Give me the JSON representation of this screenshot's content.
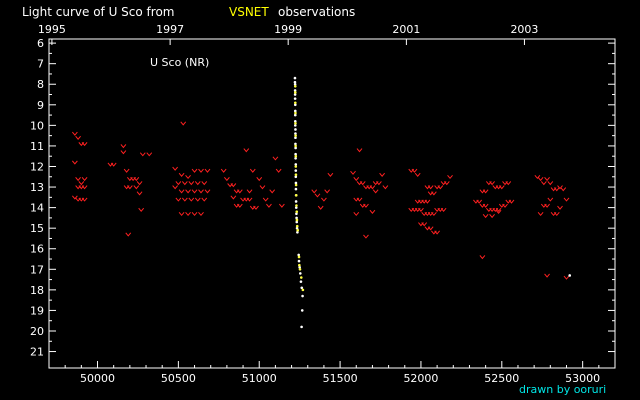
{
  "title_prefix": "Light curve of U Sco from",
  "title_source": "VSNET",
  "title_suffix": "observations",
  "credit": "drawn by ooruri",
  "colors": {
    "background": "#000000",
    "axis": "#ffffff",
    "text": "#ffffff",
    "source": "#ffff00",
    "credit": "#00e5e5",
    "red_marks": "#ff2020",
    "white_points": "#ffffff",
    "yellow_points": "#ffff40"
  },
  "chart_data": {
    "type": "scatter",
    "annotation": "U Sco (NR)",
    "x_range": [
      49700,
      53200
    ],
    "y_range": [
      21.8,
      5.8
    ],
    "y_inverted": true,
    "x_ticks": [
      50000,
      50500,
      51000,
      51500,
      52000,
      52500,
      53000
    ],
    "x_tick_labels": [
      "50000",
      "50500",
      "51000",
      "51500",
      "52000",
      "52500",
      "53000"
    ],
    "top_ticks": [
      {
        "label": "1995",
        "jd": 49718
      },
      {
        "label": "1997",
        "jd": 50449
      },
      {
        "label": "1999",
        "jd": 51179
      },
      {
        "label": "2001",
        "jd": 51910
      },
      {
        "label": "2003",
        "jd": 52640
      }
    ],
    "y_ticks": [
      6,
      7,
      8,
      9,
      10,
      11,
      12,
      13,
      14,
      15,
      16,
      17,
      18,
      19,
      20,
      21
    ],
    "series": [
      {
        "style": "fainter-than",
        "color": "red",
        "points": [
          [
            49860,
            10.4
          ],
          [
            49880,
            10.6
          ],
          [
            49900,
            10.9
          ],
          [
            49920,
            10.9
          ],
          [
            49860,
            11.8
          ],
          [
            49880,
            12.6
          ],
          [
            49900,
            12.8
          ],
          [
            49920,
            12.6
          ],
          [
            49880,
            13.0
          ],
          [
            49900,
            13.0
          ],
          [
            49920,
            13.0
          ],
          [
            49860,
            13.5
          ],
          [
            49880,
            13.6
          ],
          [
            49900,
            13.6
          ],
          [
            49920,
            13.6
          ],
          [
            50080,
            11.9
          ],
          [
            50100,
            11.9
          ],
          [
            50160,
            11.0
          ],
          [
            50160,
            11.3
          ],
          [
            50180,
            12.2
          ],
          [
            50200,
            12.6
          ],
          [
            50220,
            12.6
          ],
          [
            50240,
            12.6
          ],
          [
            50260,
            12.8
          ],
          [
            50180,
            13.0
          ],
          [
            50200,
            13.0
          ],
          [
            50240,
            13.0
          ],
          [
            50260,
            13.3
          ],
          [
            50270,
            14.1
          ],
          [
            50190,
            15.3
          ],
          [
            50280,
            11.4
          ],
          [
            50320,
            11.4
          ],
          [
            50530,
            9.9
          ],
          [
            50480,
            12.1
          ],
          [
            50520,
            12.4
          ],
          [
            50560,
            12.5
          ],
          [
            50600,
            12.2
          ],
          [
            50640,
            12.2
          ],
          [
            50680,
            12.2
          ],
          [
            50500,
            12.8
          ],
          [
            50540,
            12.8
          ],
          [
            50580,
            12.8
          ],
          [
            50620,
            12.8
          ],
          [
            50660,
            12.8
          ],
          [
            50480,
            13.0
          ],
          [
            50520,
            13.2
          ],
          [
            50560,
            13.2
          ],
          [
            50600,
            13.2
          ],
          [
            50640,
            13.2
          ],
          [
            50680,
            13.2
          ],
          [
            50500,
            13.6
          ],
          [
            50540,
            13.6
          ],
          [
            50580,
            13.6
          ],
          [
            50620,
            13.6
          ],
          [
            50660,
            13.6
          ],
          [
            50520,
            14.3
          ],
          [
            50560,
            14.3
          ],
          [
            50600,
            14.3
          ],
          [
            50640,
            14.3
          ],
          [
            50780,
            12.2
          ],
          [
            50800,
            12.6
          ],
          [
            50820,
            12.9
          ],
          [
            50840,
            12.9
          ],
          [
            50860,
            13.2
          ],
          [
            50880,
            13.2
          ],
          [
            50900,
            13.6
          ],
          [
            50920,
            13.6
          ],
          [
            50940,
            13.6
          ],
          [
            50960,
            14.0
          ],
          [
            50980,
            14.0
          ],
          [
            50840,
            13.5
          ],
          [
            50860,
            13.9
          ],
          [
            50880,
            13.9
          ],
          [
            50940,
            13.2
          ],
          [
            50960,
            12.2
          ],
          [
            50920,
            11.2
          ],
          [
            51000,
            12.6
          ],
          [
            51020,
            13.0
          ],
          [
            51040,
            13.6
          ],
          [
            51060,
            13.9
          ],
          [
            51080,
            13.2
          ],
          [
            51100,
            11.6
          ],
          [
            51120,
            12.2
          ],
          [
            51140,
            13.9
          ],
          [
            51340,
            13.2
          ],
          [
            51360,
            13.4
          ],
          [
            51380,
            14.0
          ],
          [
            51400,
            13.6
          ],
          [
            51420,
            13.2
          ],
          [
            51440,
            12.4
          ],
          [
            51580,
            12.3
          ],
          [
            51600,
            12.6
          ],
          [
            51620,
            12.8
          ],
          [
            51640,
            12.8
          ],
          [
            51660,
            13.0
          ],
          [
            51680,
            13.0
          ],
          [
            51700,
            13.0
          ],
          [
            51720,
            12.8
          ],
          [
            51740,
            12.8
          ],
          [
            51760,
            12.4
          ],
          [
            51780,
            13.0
          ],
          [
            51600,
            13.6
          ],
          [
            51620,
            13.6
          ],
          [
            51640,
            13.9
          ],
          [
            51660,
            13.9
          ],
          [
            51620,
            11.2
          ],
          [
            51660,
            15.4
          ],
          [
            51600,
            14.3
          ],
          [
            51700,
            14.2
          ],
          [
            51720,
            13.2
          ],
          [
            51940,
            12.2
          ],
          [
            51960,
            12.2
          ],
          [
            51980,
            12.4
          ],
          [
            51940,
            14.1
          ],
          [
            51960,
            14.1
          ],
          [
            51980,
            14.1
          ],
          [
            52000,
            14.1
          ],
          [
            52020,
            14.3
          ],
          [
            52040,
            14.3
          ],
          [
            52060,
            14.3
          ],
          [
            52080,
            14.3
          ],
          [
            52100,
            14.1
          ],
          [
            52120,
            14.1
          ],
          [
            52140,
            14.1
          ],
          [
            51980,
            13.7
          ],
          [
            52000,
            13.7
          ],
          [
            52020,
            13.7
          ],
          [
            52040,
            13.7
          ],
          [
            52060,
            13.3
          ],
          [
            52080,
            13.3
          ],
          [
            52100,
            13.0
          ],
          [
            52120,
            13.0
          ],
          [
            52140,
            12.8
          ],
          [
            52160,
            12.8
          ],
          [
            52180,
            12.5
          ],
          [
            52040,
            13.0
          ],
          [
            52060,
            13.0
          ],
          [
            52000,
            14.8
          ],
          [
            52020,
            14.8
          ],
          [
            52040,
            15.0
          ],
          [
            52060,
            15.0
          ],
          [
            52080,
            15.2
          ],
          [
            52100,
            15.2
          ],
          [
            52340,
            13.7
          ],
          [
            52360,
            13.7
          ],
          [
            52380,
            13.9
          ],
          [
            52400,
            13.9
          ],
          [
            52420,
            14.1
          ],
          [
            52440,
            14.1
          ],
          [
            52460,
            14.1
          ],
          [
            52480,
            14.1
          ],
          [
            52500,
            13.9
          ],
          [
            52520,
            13.9
          ],
          [
            52540,
            13.7
          ],
          [
            52560,
            13.7
          ],
          [
            52380,
            13.2
          ],
          [
            52400,
            13.2
          ],
          [
            52420,
            12.8
          ],
          [
            52440,
            12.8
          ],
          [
            52460,
            13.0
          ],
          [
            52480,
            13.0
          ],
          [
            52500,
            13.0
          ],
          [
            52520,
            12.8
          ],
          [
            52540,
            12.8
          ],
          [
            52400,
            14.4
          ],
          [
            52440,
            14.4
          ],
          [
            52480,
            14.2
          ],
          [
            52380,
            16.4
          ],
          [
            52720,
            12.5
          ],
          [
            52740,
            12.6
          ],
          [
            52760,
            12.8
          ],
          [
            52780,
            12.6
          ],
          [
            52800,
            12.8
          ],
          [
            52820,
            13.1
          ],
          [
            52840,
            13.1
          ],
          [
            52860,
            13.0
          ],
          [
            52880,
            13.1
          ],
          [
            52900,
            13.6
          ],
          [
            52760,
            13.9
          ],
          [
            52780,
            13.9
          ],
          [
            52800,
            13.6
          ],
          [
            52820,
            14.3
          ],
          [
            52840,
            14.3
          ],
          [
            52860,
            14.0
          ],
          [
            52740,
            14.3
          ],
          [
            52780,
            17.3
          ],
          [
            52900,
            17.4
          ]
        ]
      },
      {
        "style": "dot",
        "color": "white",
        "points": [
          [
            51221,
            7.7
          ],
          [
            51221,
            7.9
          ],
          [
            51222,
            8.0
          ],
          [
            51222,
            8.3
          ],
          [
            51222,
            8.5
          ],
          [
            51222,
            8.7
          ],
          [
            51223,
            9.0
          ],
          [
            51223,
            9.3
          ],
          [
            51223,
            9.5
          ],
          [
            51223,
            9.8
          ],
          [
            51223,
            10.0
          ],
          [
            51224,
            10.2
          ],
          [
            51224,
            10.4
          ],
          [
            51224,
            10.6
          ],
          [
            51224,
            10.9
          ],
          [
            51225,
            11.1
          ],
          [
            51225,
            11.4
          ],
          [
            51225,
            11.6
          ],
          [
            51226,
            11.9
          ],
          [
            51226,
            12.2
          ],
          [
            51226,
            12.5
          ],
          [
            51227,
            12.8
          ],
          [
            51227,
            13.1
          ],
          [
            51228,
            13.4
          ],
          [
            51228,
            13.7
          ],
          [
            51229,
            14.0
          ],
          [
            51230,
            14.3
          ],
          [
            51231,
            14.5
          ],
          [
            51232,
            14.7
          ],
          [
            51234,
            15.0
          ],
          [
            51236,
            15.2
          ],
          [
            51244,
            16.3
          ],
          [
            51246,
            16.6
          ],
          [
            51250,
            16.9
          ],
          [
            51254,
            17.2
          ],
          [
            51258,
            17.6
          ],
          [
            51263,
            17.9
          ],
          [
            51268,
            18.3
          ],
          [
            51266,
            19.0
          ],
          [
            51262,
            19.8
          ],
          [
            52920,
            17.3
          ]
        ]
      },
      {
        "style": "dot",
        "color": "yellow",
        "points": [
          [
            51223,
            8.1
          ],
          [
            51223,
            8.4
          ],
          [
            51223,
            8.9
          ],
          [
            51224,
            9.4
          ],
          [
            51224,
            9.9
          ],
          [
            51225,
            10.5
          ],
          [
            51225,
            11.0
          ],
          [
            51226,
            11.5
          ],
          [
            51226,
            12.0
          ],
          [
            51227,
            12.4
          ],
          [
            51228,
            12.9
          ],
          [
            51229,
            13.4
          ],
          [
            51230,
            13.9
          ],
          [
            51232,
            14.2
          ],
          [
            51233,
            14.6
          ],
          [
            51235,
            14.9
          ],
          [
            51238,
            15.1
          ],
          [
            51246,
            16.4
          ],
          [
            51248,
            16.8
          ],
          [
            51252,
            17.0
          ],
          [
            51260,
            17.4
          ],
          [
            51270,
            18.0
          ]
        ]
      }
    ]
  }
}
